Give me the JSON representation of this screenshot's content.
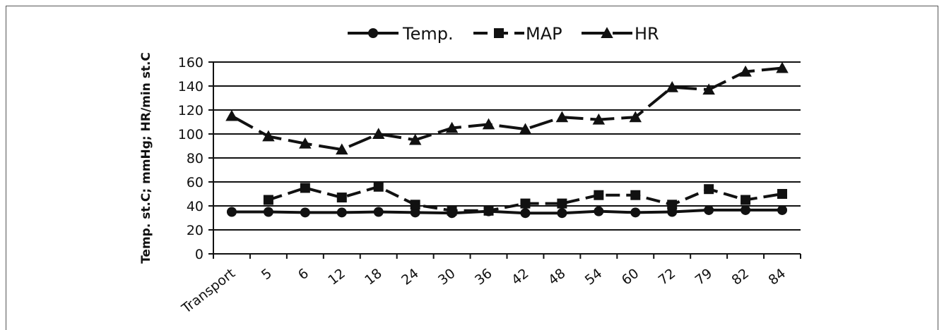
{
  "chart_data": {
    "type": "line",
    "title": "",
    "xlabel": "",
    "ylabel": "Temp. st.C; mmHg; HR/min  st.C",
    "ylim": [
      0,
      160
    ],
    "yticks": [
      0,
      20,
      40,
      60,
      80,
      100,
      120,
      140,
      160
    ],
    "grid": true,
    "legend_position": "top",
    "categories": [
      "Transport",
      "5",
      "6",
      "12",
      "18",
      "24",
      "30",
      "36",
      "42",
      "48",
      "54",
      "60",
      "72",
      "79",
      "82",
      "84"
    ],
    "series": [
      {
        "name": "Temp.",
        "marker": "circle",
        "dash": "solid",
        "values": [
          35,
          35,
          34.5,
          34.5,
          35,
          34.5,
          34,
          35.5,
          34,
          34,
          35.5,
          34.5,
          35,
          36.5,
          36.5,
          36.5
        ]
      },
      {
        "name": "MAP",
        "marker": "square",
        "dash": "dashed",
        "values": [
          null,
          45,
          55,
          47,
          56,
          41,
          36,
          36,
          42,
          42,
          49,
          49,
          41,
          54,
          45,
          50
        ]
      },
      {
        "name": "HR",
        "marker": "triangle",
        "dash": "long-dashed",
        "values": [
          115,
          98,
          92,
          87,
          100,
          95,
          105,
          108,
          104,
          114,
          112,
          114,
          139,
          137,
          152,
          155
        ]
      }
    ],
    "colors": {
      "line": "#111111",
      "grid": "#111111"
    }
  }
}
